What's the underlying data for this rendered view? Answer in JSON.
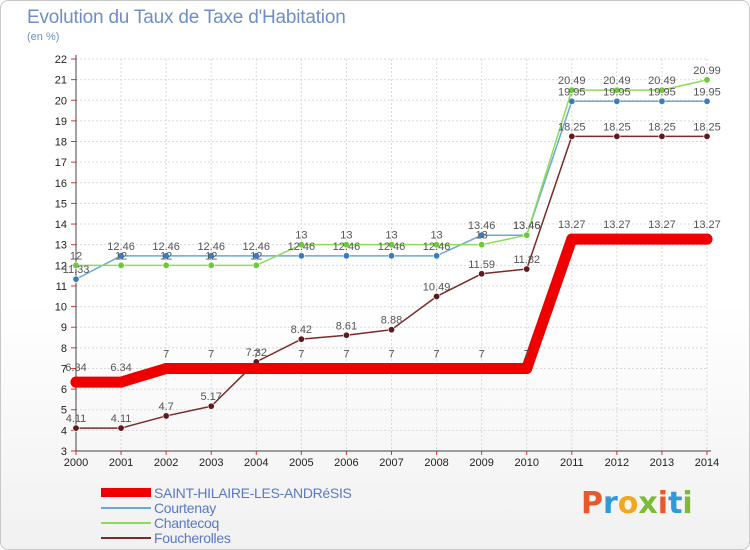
{
  "title": "Evolution du Taux de Taxe d'Habitation",
  "unit": "(en %)",
  "logo": {
    "text": "Proxiti",
    "colors": [
      "#e8582b",
      "#2f9ad7",
      "#f2a81c",
      "#7dbb34",
      "#e8582b",
      "#2f9ad7",
      "#7dbb34"
    ]
  },
  "chart_data": {
    "type": "line",
    "x": [
      2000,
      2001,
      2002,
      2003,
      2004,
      2005,
      2006,
      2007,
      2008,
      2009,
      2010,
      2011,
      2012,
      2013,
      2014
    ],
    "ylim": [
      3,
      22
    ],
    "yticks": [
      3,
      4,
      5,
      6,
      7,
      8,
      9,
      10,
      11,
      12,
      13,
      14,
      15,
      16,
      17,
      18,
      19,
      20,
      21,
      22
    ],
    "grid": true,
    "legend_position": "bottom-left",
    "series": [
      {
        "name": "SAINT-HILAIRE-LES-ANDRéSIS",
        "color": "#ee0000",
        "width": 11,
        "values": [
          6.34,
          6.34,
          7,
          7,
          7,
          7,
          7,
          7,
          7,
          7,
          7,
          13.27,
          13.27,
          13.27,
          13.27
        ],
        "labels": [
          "6.34",
          "6.34",
          "7",
          "7",
          "7",
          "7",
          "7",
          "7",
          "7",
          "7",
          "7",
          "13.27",
          "13.27",
          "13.27",
          "13.27"
        ]
      },
      {
        "name": "Courtenay",
        "color": "#6aa8d8",
        "marker": "#3a7cc0",
        "width": 1.5,
        "values": [
          11.33,
          12.46,
          12.46,
          12.46,
          12.46,
          12.46,
          12.46,
          12.46,
          12.46,
          13.46,
          13.46,
          19.95,
          19.95,
          19.95,
          19.95
        ],
        "labels": [
          "11.33",
          "12.46",
          "12.46",
          "12.46",
          "12.46",
          "12.46",
          "12.46",
          "12.46",
          "12.46",
          "13.46",
          "13.46",
          "19.95",
          "19.95",
          "19.95",
          "19.95"
        ]
      },
      {
        "name": "Chantecoq",
        "color": "#8fdc5a",
        "marker": "#6cc93a",
        "width": 1.5,
        "values": [
          12,
          12,
          12,
          12,
          12,
          13,
          13,
          13,
          13,
          13,
          13.46,
          20.49,
          20.49,
          20.49,
          20.99
        ],
        "labels": [
          "12",
          "12",
          "12",
          "12",
          "12",
          "13",
          "13",
          "13",
          "13",
          "13",
          "13.46",
          "20.49",
          "20.49",
          "20.49",
          "20.99"
        ]
      },
      {
        "name": "Foucherolles",
        "color": "#7a2a2a",
        "marker": "#5e1a1a",
        "width": 1.5,
        "values": [
          4.11,
          4.11,
          4.7,
          5.17,
          7.32,
          8.42,
          8.61,
          8.88,
          10.49,
          11.59,
          11.82,
          18.25,
          18.25,
          18.25,
          18.25
        ],
        "labels": [
          "4.11",
          "4.11",
          "4.7",
          "5.17",
          "7.32",
          "8.42",
          "8.61",
          "8.88",
          "10.49",
          "11.59",
          "11.82",
          "18.25",
          "18.25",
          "18.25",
          "18.25"
        ]
      }
    ]
  }
}
